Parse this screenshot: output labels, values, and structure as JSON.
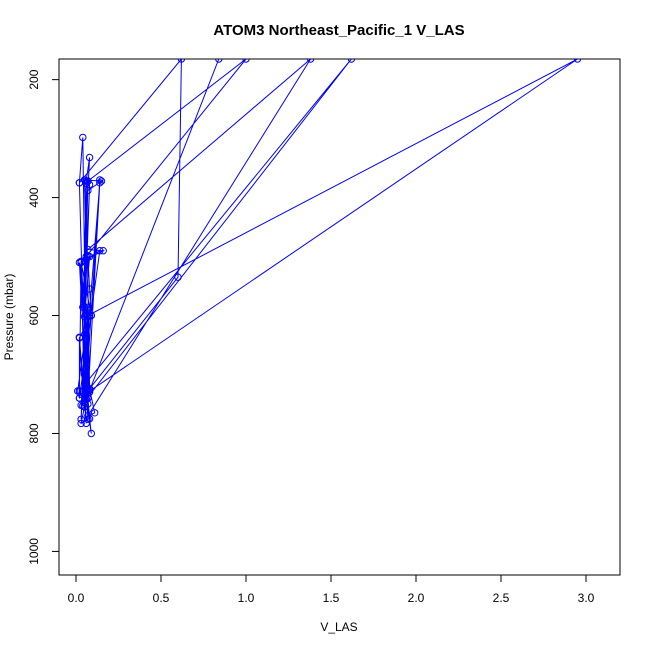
{
  "chart_data": {
    "type": "line",
    "title": "ATOM3 Northeast_Pacific_1 V_LAS",
    "xlabel": "V_LAS",
    "ylabel": "Pressure (mbar)",
    "xlim": [
      -0.1,
      3.2
    ],
    "ylim": [
      1040,
      165
    ],
    "y_axis_reversed": true,
    "x_ticks": [
      "0.0",
      "0.5",
      "1.0",
      "1.5",
      "2.0",
      "2.5",
      "3.0"
    ],
    "y_ticks": [
      "200",
      "400",
      "600",
      "800",
      "1000"
    ],
    "grid": false,
    "legend": "none",
    "color": "#0000ff",
    "marker": "open-circle",
    "series": [
      {
        "x": [
          0.02,
          0.04,
          0.05,
          0.06,
          0.08,
          0.07,
          0.15,
          0.05,
          0.06,
          0.07,
          0.04,
          0.02,
          0.62,
          0.6,
          0.08,
          0.06,
          0.14,
          0.07,
          0.08,
          0.09,
          0.06,
          0.07,
          0.08,
          0.05,
          0.08,
          0.03,
          0.02,
          0.02,
          0.14,
          0.06,
          0.16,
          0.07,
          1.38,
          0.07,
          0.11,
          0.08,
          0.06,
          0.04,
          0.07,
          0.03,
          0.09,
          0.02,
          0.02,
          1.62,
          0.06,
          0.08,
          0.03,
          0.05,
          0.07,
          0.06,
          0.03,
          0.08,
          0.05,
          0.07,
          0.01,
          0.02,
          2.95,
          0.07,
          0.07,
          0.14,
          0.05,
          0.06,
          0.02,
          0.04,
          0.07,
          1.0,
          0.06,
          0.07,
          0.08,
          0.09,
          0.07,
          0.08,
          0.03,
          0.07,
          0.02,
          0.07,
          0.03,
          0.05,
          0.08,
          0.84
        ],
        "y": [
          375,
          298,
          508,
          372,
          332,
          388,
          372,
          370,
          500,
          372,
          586,
          375,
          165,
          535,
          724,
          727,
          370,
          740,
          775,
          800,
          740,
          591,
          600,
          602,
          500,
          510,
          728,
          740,
          490,
          505,
          490,
          488,
          165,
          770,
          765,
          725,
          376,
          753,
          750,
          510,
          600,
          638,
          728,
          165,
          742,
          727,
          508,
          755,
          586,
          600,
          776,
          378,
          586,
          600,
          728,
          740,
          165,
          600,
          740,
          375,
          700,
          783,
          637,
          728,
          372,
          165,
          500,
          500,
          555,
          600,
          600,
          730,
          752,
          601,
          510,
          776,
          783,
          755,
          727,
          165
        ]
      }
    ]
  }
}
